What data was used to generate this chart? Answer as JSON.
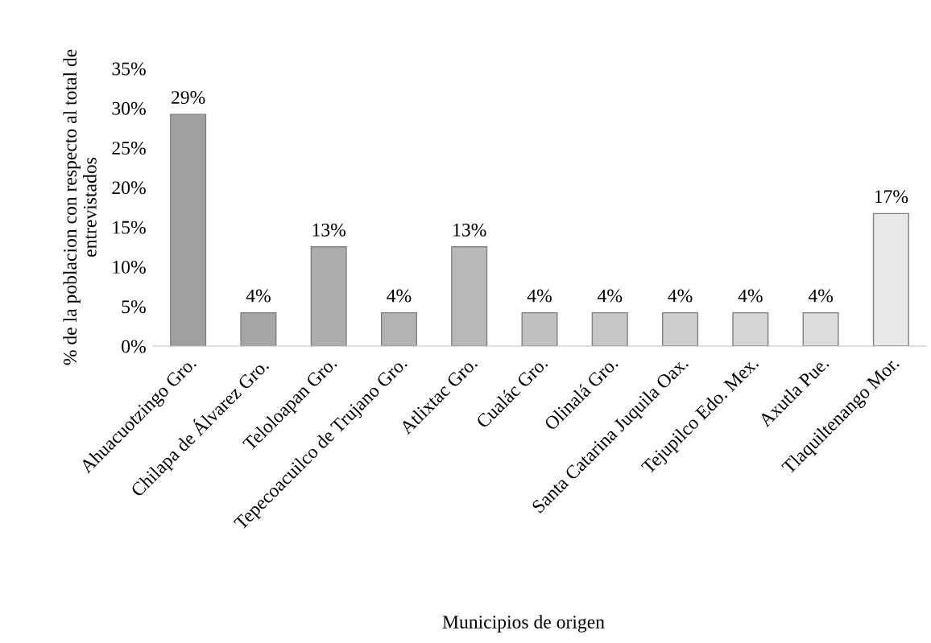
{
  "chart_data": {
    "type": "bar",
    "xlabel": "Municipios de origen",
    "ylabel": "% de la poblacion con respecto al total de entrevistados",
    "categories": [
      "Ahuacuotzingo Gro.",
      "Chilapa de Álvarez Gro.",
      "Teloloapan Gro.",
      "Tepecoacuilco de Trujano Gro.",
      "Atlixtac Gro.",
      "Cualác Gro.",
      "Olinalá Gro.",
      "Santa Catarina Juquila Oax.",
      "Tejupilco Edo. Mex.",
      "Axutla Pue.",
      "Tlaquiltenango Mor."
    ],
    "values": [
      29.2,
      4.2,
      12.5,
      4.2,
      12.5,
      4.2,
      4.2,
      4.2,
      4.2,
      4.2,
      16.7
    ],
    "value_labels": [
      "29%",
      "4%",
      "13%",
      "4%",
      "13%",
      "4%",
      "4%",
      "4%",
      "4%",
      "4%",
      "17%"
    ],
    "colors": [
      "#a0a0a0",
      "#a6a6a6",
      "#adadad",
      "#b3b3b3",
      "#b9b9b9",
      "#c0c0c0",
      "#c7c7c7",
      "#cecece",
      "#d5d5d5",
      "#dcdcdc",
      "#e8e8e8"
    ],
    "ylim": [
      0,
      35
    ],
    "yticks": [
      {
        "value": 0,
        "label": "0%"
      },
      {
        "value": 5,
        "label": "5%"
      },
      {
        "value": 10,
        "label": "10%"
      },
      {
        "value": 15,
        "label": "15%"
      },
      {
        "value": 20,
        "label": "20%"
      },
      {
        "value": 25,
        "label": "25%"
      },
      {
        "value": 30,
        "label": "30%"
      },
      {
        "value": 35,
        "label": "35%"
      }
    ],
    "grid": false,
    "legend": false
  }
}
